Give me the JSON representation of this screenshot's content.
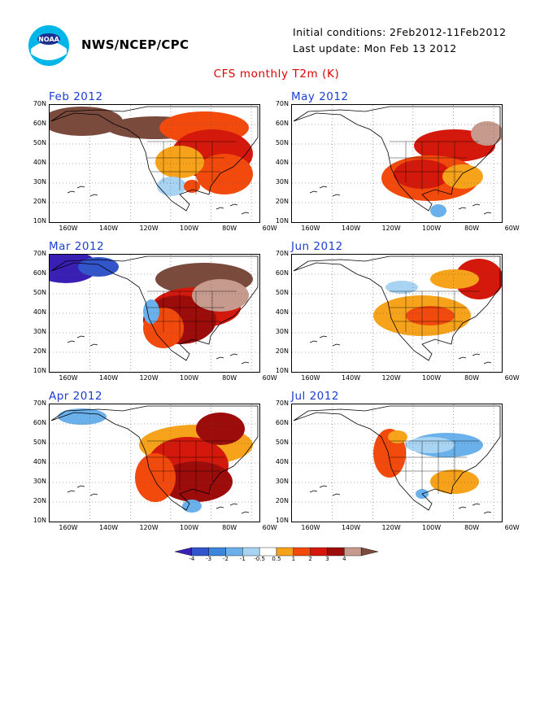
{
  "header": {
    "org": "NWS/NCEP/CPC",
    "initial_conditions": "Initial conditions: 2Feb2012-11Feb2012",
    "last_update": "Last update: Mon Feb 13 2012",
    "title": "CFS monthly T2m (K)"
  },
  "panels": [
    {
      "title": "Feb 2012"
    },
    {
      "title": "May 2012"
    },
    {
      "title": "Mar 2012"
    },
    {
      "title": "Jun 2012"
    },
    {
      "title": "Apr 2012"
    },
    {
      "title": "Jul 2012"
    }
  ],
  "axes": {
    "lat_labels": [
      "70N",
      "60N",
      "50N",
      "40N",
      "30N",
      "20N",
      "10N"
    ],
    "lon_labels": [
      "160W",
      "140W",
      "120W",
      "100W",
      "80W",
      "60W"
    ]
  },
  "colorbar": {
    "labels": [
      "-4",
      "-3",
      "-2",
      "-1",
      "-0.5",
      "0.5",
      "1",
      "2",
      "3",
      "4"
    ],
    "colors": [
      "#3a1fb5",
      "#3355cc",
      "#3d86dd",
      "#6ab0ea",
      "#a8d3f3",
      "#ffffff",
      "#f6a21a",
      "#f24a0c",
      "#d4180b",
      "#9b0c0a",
      "#c79a8e",
      "#7a4a3d"
    ]
  }
}
